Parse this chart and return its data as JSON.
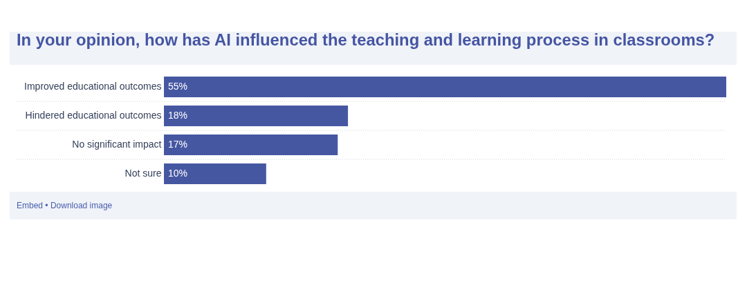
{
  "chart_data": {
    "type": "bar",
    "orientation": "horizontal",
    "title": "In your opinion, how has AI influenced the teaching and learning process in classrooms?",
    "categories": [
      "Improved educational outcomes",
      "Hindered educational outcomes",
      "No significant impact",
      "Not sure"
    ],
    "values": [
      55,
      18,
      17,
      10
    ],
    "value_labels": [
      "55%",
      "18%",
      "17%",
      "10%"
    ],
    "color": "#4657a2",
    "tick_labels": "y",
    "grid": "y",
    "annotations": [
      "Embed • Download image"
    ]
  }
}
